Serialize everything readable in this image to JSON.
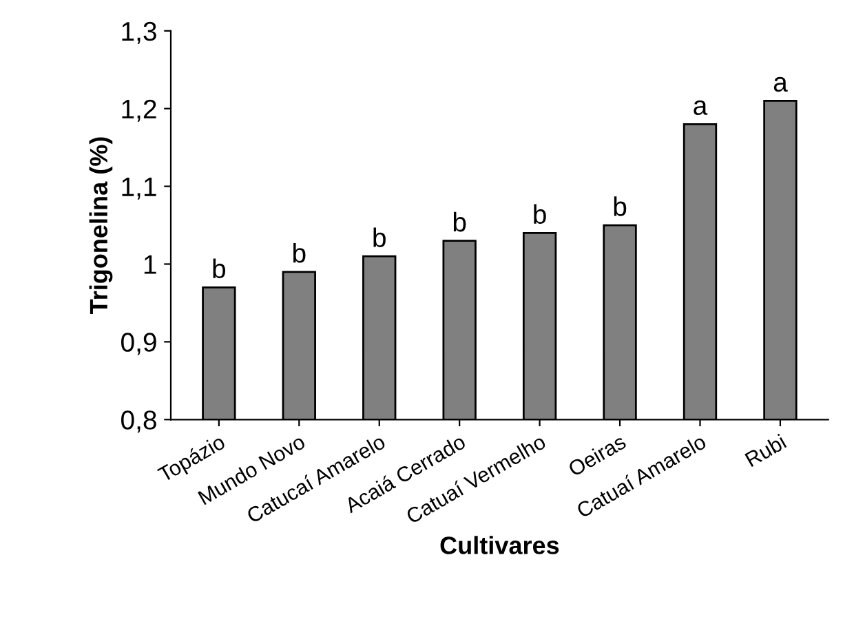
{
  "chart_data": {
    "type": "bar",
    "xlabel": "Cultivares",
    "ylabel": "Trigonelina (%)",
    "categories": [
      "Topázio",
      "Mundo Novo",
      "Catucaí Amarelo",
      "Acaiá Cerrado",
      "Catuaí Vermelho",
      "Oeiras",
      "Catuaí Amarelo",
      "Rubi"
    ],
    "values": [
      0.97,
      0.99,
      1.01,
      1.03,
      1.04,
      1.05,
      1.18,
      1.21
    ],
    "value_labels": [
      "b",
      "b",
      "b",
      "b",
      "b",
      "b",
      "a",
      "a"
    ],
    "color": "#808080",
    "ylim": [
      0.8,
      1.3
    ],
    "yticks": [
      {
        "value": 0.8,
        "label": "0,8"
      },
      {
        "value": 0.9,
        "label": "0,9"
      },
      {
        "value": 1.0,
        "label": "1"
      },
      {
        "value": 1.1,
        "label": "1,1"
      },
      {
        "value": 1.2,
        "label": "1,2"
      },
      {
        "value": 1.3,
        "label": "1,3"
      }
    ],
    "grid": false,
    "legend": false
  }
}
